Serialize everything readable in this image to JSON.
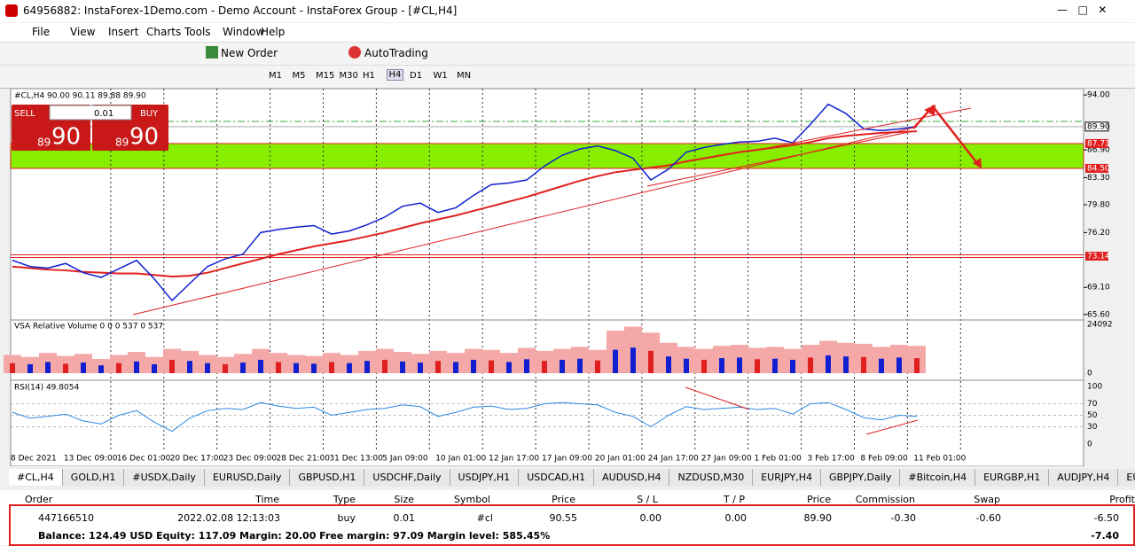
{
  "window": {
    "title": "64956882: InstaForex-1Demo.com - Demo Account - InstaForex Group - [#CL,H4]",
    "menu": [
      "File",
      "View",
      "Insert",
      "Charts",
      "Tools",
      "Window",
      "Help"
    ],
    "new_order": "New Order",
    "autotrading": "AutoTrading",
    "timeframes": [
      "M1",
      "M5",
      "M15",
      "M30",
      "H1",
      "H4",
      "D1",
      "W1",
      "MN"
    ]
  },
  "chart": {
    "header": "#CL,H4  90.00 90.11 89.88 89.90",
    "trade_panel": {
      "sell": "SELL",
      "buy": "BUY",
      "lot": "0.01",
      "sell_small": "89",
      "sell_big": "90",
      "buy_small": "89",
      "buy_big": "90"
    },
    "ylim": [
      65,
      94.7
    ],
    "yticks": [
      {
        "value": 94,
        "label": "94.00"
      },
      {
        "value": 86.9,
        "label": "86.90"
      },
      {
        "value": 83.3,
        "label": "83.30"
      },
      {
        "value": 79.8,
        "label": "79.80"
      },
      {
        "value": 76.2,
        "label": "76.20"
      },
      {
        "value": 69.1,
        "label": "69.10"
      },
      {
        "value": 65.6,
        "label": "65.60"
      }
    ],
    "levels": [
      {
        "value": 89.9,
        "label": "89.90"
      },
      {
        "value": 87.71,
        "label": "87.71"
      },
      {
        "value": 84.5,
        "label": "84.50"
      },
      {
        "value": 73.14,
        "label": "73.14"
      }
    ],
    "close": [
      72.6,
      71.8,
      71.6,
      72.2,
      71.0,
      70.4,
      71.5,
      72.6,
      70.2,
      67.4,
      69.6,
      71.8,
      72.8,
      73.4,
      76.2,
      76.6,
      76.9,
      77.1,
      76.0,
      76.4,
      77.2,
      78.2,
      79.6,
      80.0,
      78.8,
      79.4,
      81.0,
      82.4,
      82.6,
      83.0,
      84.8,
      86.2,
      87.0,
      87.4,
      86.8,
      85.8,
      83.0,
      84.4,
      86.6,
      87.2,
      87.6,
      87.9,
      88.0,
      88.4,
      87.8,
      90.2,
      92.8,
      91.6,
      89.6,
      89.4,
      89.6,
      89.9
    ],
    "ma": [
      71.8,
      71.6,
      71.4,
      71.3,
      71.1,
      71.0,
      70.9,
      70.9,
      70.7,
      70.5,
      70.6,
      71.0,
      71.6,
      72.2,
      72.8,
      73.4,
      73.9,
      74.4,
      74.8,
      75.2,
      75.7,
      76.2,
      76.8,
      77.4,
      77.9,
      78.4,
      79.0,
      79.6,
      80.2,
      80.8,
      81.5,
      82.2,
      82.9,
      83.5,
      84.0,
      84.3,
      84.6,
      84.9,
      85.4,
      85.8,
      86.2,
      86.6,
      86.9,
      87.2,
      87.5,
      87.9,
      88.4,
      88.7,
      88.9,
      89.1,
      89.2,
      89.3
    ],
    "dates": [
      "8 Dec 2021",
      "13 Dec 09:00",
      "16 Dec 01:00",
      "20 Dec 17:00",
      "23 Dec 09:00",
      "28 Dec 21:00",
      "31 Dec 13:00",
      "5 Jan 09:00",
      "10 Jan 01:00",
      "12 Jan 17:00",
      "17 Jan 09:00",
      "20 Jan 01:00",
      "24 Jan 17:00",
      "27 Jan 09:00",
      "1 Feb 01:00",
      "3 Feb 17:00",
      "8 Feb 09:00",
      "11 Feb 01:00"
    ],
    "volume": {
      "label": "VSA Relative Volume 0 0 0 537 0 537",
      "ylim": [
        0,
        24092
      ],
      "yticks": [
        24092,
        0
      ],
      "values": [
        9000,
        8000,
        10000,
        8500,
        9500,
        7000,
        9000,
        10500,
        8000,
        12000,
        11000,
        9000,
        8000,
        9500,
        12000,
        10000,
        9000,
        8500,
        10000,
        9000,
        11000,
        12000,
        10500,
        9500,
        11000,
        10000,
        12000,
        11500,
        10000,
        12500,
        11000,
        12000,
        13000,
        11500,
        21000,
        23000,
        20000,
        15000,
        13000,
        12000,
        13500,
        14000,
        12500,
        13000,
        12000,
        14000,
        16000,
        15000,
        14500,
        13000,
        14000,
        13500
      ]
    },
    "rsi": {
      "label": "RSI(14) 49.8054",
      "ylim": [
        0,
        100
      ],
      "yticks": [
        100,
        70,
        50,
        30,
        0
      ],
      "values": [
        55,
        45,
        48,
        52,
        40,
        35,
        50,
        58,
        38,
        22,
        45,
        58,
        62,
        60,
        72,
        66,
        62,
        64,
        50,
        55,
        60,
        62,
        68,
        65,
        48,
        55,
        64,
        66,
        60,
        62,
        70,
        72,
        70,
        68,
        55,
        48,
        30,
        50,
        65,
        60,
        62,
        64,
        60,
        62,
        52,
        70,
        72,
        60,
        46,
        42,
        50,
        48
      ]
    }
  },
  "tabs": [
    "#CL,H4",
    "GOLD,H1",
    "#USDX,Daily",
    "EURUSD,Daily",
    "GBPUSD,H1",
    "USDCHF,Daily",
    "USDJPY,H1",
    "USDCAD,H1",
    "AUDUSD,H4",
    "NZDUSD,M30",
    "EURJPY,H4",
    "GBPJPY,Daily",
    "#Bitcoin,H4",
    "EURGBP,H1",
    "AUDJPY,H4",
    "EURAUI"
  ],
  "terminal": {
    "headers": [
      "Order",
      "Time",
      "Type",
      "Size",
      "Symbol",
      "Price",
      "S / L",
      "T / P",
      "Price",
      "Commission",
      "Swap",
      "Profit"
    ],
    "row": [
      "447166510",
      "2022.02.08 12:13:03",
      "buy",
      "0.01",
      "#cl",
      "90.55",
      "0.00",
      "0.00",
      "89.90",
      "-0.30",
      "-0.60",
      "-6.50"
    ],
    "balance": "Balance: 124.49 USD  Equity: 117.09  Margin: 20.00  Free margin: 97.09  Margin level: 585.45%",
    "total": "-7.40"
  }
}
